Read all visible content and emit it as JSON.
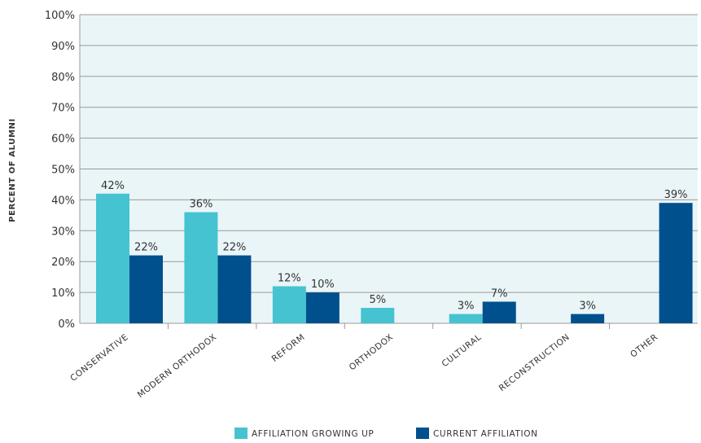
{
  "chart_data": {
    "type": "bar",
    "ylabel": "PERCENT OF ALUMNI",
    "xlabel": "",
    "ylim": [
      0,
      100
    ],
    "y_ticks": [
      "0%",
      "10%",
      "20%",
      "30%",
      "40%",
      "50%",
      "60%",
      "70%",
      "80%",
      "90%",
      "100%"
    ],
    "categories": [
      "CONSERVATIVE",
      "MODERN ORTHODOX",
      "REFORM",
      "ORTHODOX",
      "CULTURAL",
      "RECONSTRUCTION",
      "OTHER"
    ],
    "series": [
      {
        "name": "AFFILIATION GROWING UP",
        "color": "#45c3d1",
        "values": [
          42,
          36,
          12,
          5,
          3,
          0,
          0
        ],
        "labels": [
          "42%",
          "36%",
          "12%",
          "5%",
          "3%",
          "",
          ""
        ]
      },
      {
        "name": "CURRENT AFFILIATION",
        "color": "#00508e",
        "values": [
          22,
          22,
          10,
          0,
          7,
          3,
          39
        ],
        "labels": [
          "22%",
          "22%",
          "10%",
          "",
          "7%",
          "3%",
          "39%"
        ]
      }
    ],
    "plot_background": "#eaf5f8",
    "gridline_color": "#9a9a9a",
    "grid": true,
    "legend_position": "bottom-center"
  }
}
